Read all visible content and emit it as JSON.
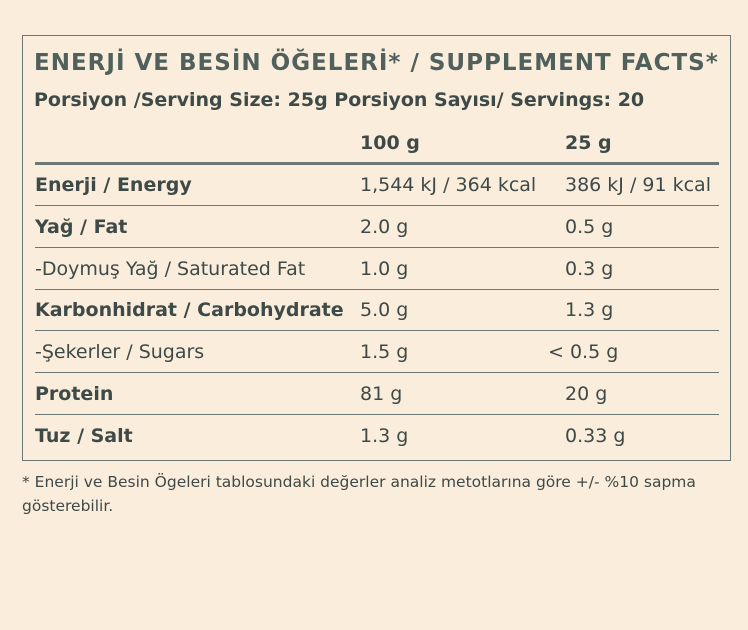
{
  "title": "ENERJİ VE BESİN ÖĞELERİ* / SUPPLEMENT FACTS*",
  "subtitle": "Porsiyon /Serving Size: 25g Porsiyon Sayısı/ Servings: 20",
  "table": {
    "header": [
      "100 g",
      "25 g"
    ],
    "rows": [
      [
        "Enerji / Energy",
        "1,544 kJ / 364 kcal",
        "386 kJ / 91 kcal"
      ],
      [
        "Yağ / Fat",
        "2.0 g",
        "0.5 g"
      ],
      [
        "-Doymuş Yağ / Saturated Fat",
        "1.0 g",
        "0.3 g"
      ],
      [
        "Karbonhidrat / Carbohydrate",
        "5.0 g",
        "1.3 g"
      ],
      [
        "-Şekerler / Sugars",
        "1.5 g",
        "< 0.5 g"
      ],
      [
        "Protein",
        "81 g",
        "20 g"
      ],
      [
        "Tuz / Salt",
        "1.3 g",
        "0.33 g"
      ]
    ]
  },
  "footnote": "* Enerji ve Besin Ögeleri tablosundaki değerler analiz metotlarına göre +/- %10 sapma gösterebilir."
}
